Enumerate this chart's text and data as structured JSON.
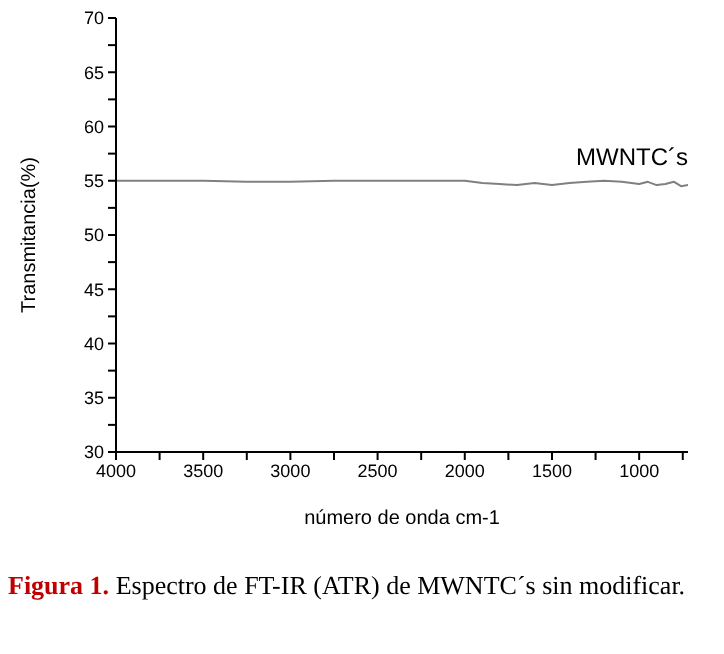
{
  "chart_data": {
    "type": "line",
    "xlabel": "número de onda cm-1",
    "ylabel": "Transmitancia(%)",
    "x": [
      4000,
      3750,
      3500,
      3250,
      3000,
      2750,
      2500,
      2250,
      2000,
      1900,
      1800,
      1700,
      1600,
      1500,
      1400,
      1300,
      1200,
      1100,
      1000,
      950,
      900,
      850,
      800,
      760,
      720
    ],
    "series": [
      {
        "name": "MWNTC´s",
        "color": "#808080",
        "values": [
          55.0,
          55.0,
          55.0,
          54.9,
          54.9,
          55.0,
          55.0,
          55.0,
          55.0,
          54.8,
          54.7,
          54.6,
          54.8,
          54.6,
          54.8,
          54.9,
          55.0,
          54.9,
          54.7,
          54.9,
          54.6,
          54.7,
          54.9,
          54.5,
          54.6
        ]
      }
    ],
    "xlim": [
      4000,
      720
    ],
    "xticks": [
      4000,
      {
        "value": 3750,
        "label": null
      },
      3500,
      {
        "value": 3250,
        "label": null
      },
      3000,
      {
        "value": 2750,
        "label": null
      },
      2500,
      {
        "value": 2250,
        "label": null
      },
      2000,
      {
        "value": 1750,
        "label": null
      },
      1500,
      {
        "value": 1250,
        "label": null
      },
      1000,
      {
        "value": 750,
        "label": null
      }
    ],
    "ylim": [
      30,
      70
    ],
    "yticks": [
      30,
      {
        "value": 32.5,
        "label": null
      },
      35,
      {
        "value": 37.5,
        "label": null
      },
      40,
      {
        "value": 42.5,
        "label": null
      },
      45,
      {
        "value": 47.5,
        "label": null
      },
      50,
      {
        "value": 52.5,
        "label": null
      },
      55,
      {
        "value": 57.5,
        "label": null
      },
      60,
      {
        "value": 62.5,
        "label": null
      },
      65,
      {
        "value": 67.5,
        "label": null
      },
      70
    ],
    "grid": false,
    "legend": false,
    "marker": "none",
    "line_style": "solid",
    "annotations": [
      "Figura 1.",
      "Espectro de FT-IR (ATR) de MWNTC´s sin modificar."
    ]
  }
}
